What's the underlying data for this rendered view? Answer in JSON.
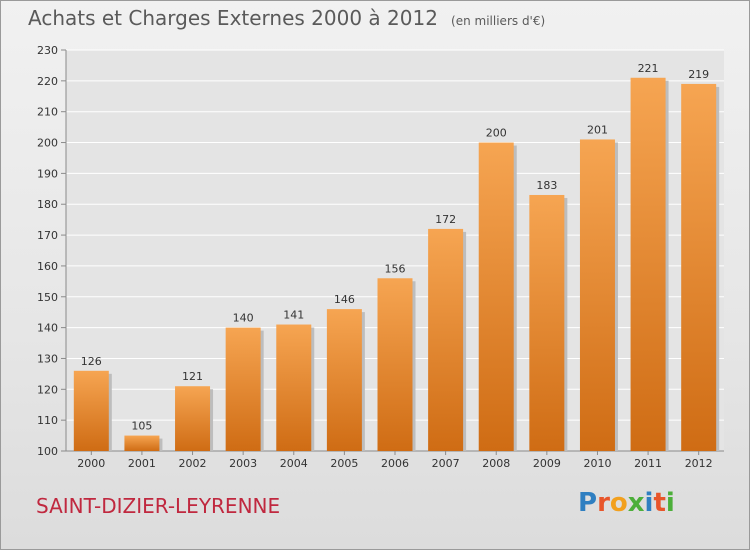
{
  "title": "Achats et Charges Externes 2000 à 2012",
  "unit_note": "(en milliers d'€)",
  "commune": "SAINT-DIZIER-LEYRENNE",
  "logo": {
    "text": "Proxiti",
    "letters": [
      "P",
      "r",
      "o",
      "x",
      "i",
      "t",
      "i"
    ],
    "colors": [
      "#2f7fc1",
      "#e8552a",
      "#f2a01e",
      "#4caf3a",
      "#2f7fc1",
      "#e8552a",
      "#4caf3a"
    ]
  },
  "colors": {
    "bar_top": "#f6a552",
    "bar_bottom": "#cf6c14",
    "title": "#5a5a5a",
    "commune": "#c0283f"
  },
  "chart_data": {
    "type": "bar",
    "categories": [
      "2000",
      "2001",
      "2002",
      "2003",
      "2004",
      "2005",
      "2006",
      "2007",
      "2008",
      "2009",
      "2010",
      "2011",
      "2012"
    ],
    "values": [
      126,
      105,
      121,
      140,
      141,
      146,
      156,
      172,
      200,
      183,
      201,
      221,
      219
    ],
    "ylim": [
      100,
      230
    ],
    "yticks": [
      100,
      110,
      120,
      130,
      140,
      150,
      160,
      170,
      180,
      190,
      200,
      210,
      220,
      230
    ],
    "grid": true,
    "legend": false
  }
}
